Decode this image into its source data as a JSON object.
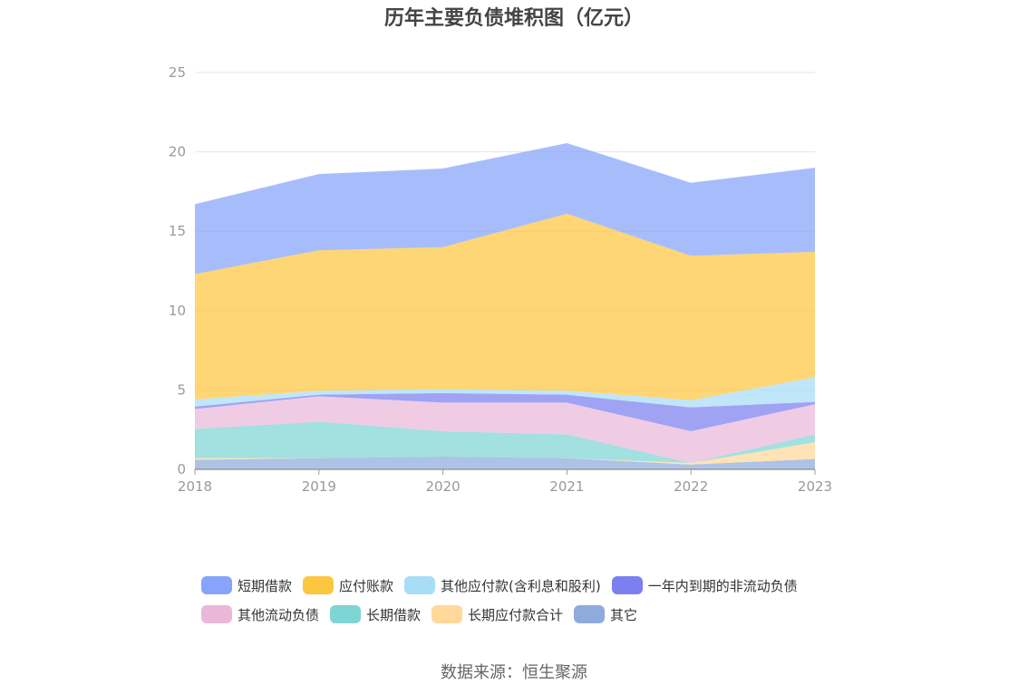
{
  "chart_data": {
    "type": "area",
    "stacked": true,
    "title": "历年主要负债堆积图（亿元）",
    "categories": [
      "2018",
      "2019",
      "2020",
      "2021",
      "2022",
      "2023"
    ],
    "ylim": [
      0,
      25
    ],
    "yticks": [
      0,
      5,
      10,
      15,
      20,
      25
    ],
    "grid": true,
    "legend_position": "bottom",
    "series": [
      {
        "name": "其它",
        "color": "#8FAADC",
        "values": [
          0.6,
          0.7,
          0.8,
          0.7,
          0.3,
          0.65
        ]
      },
      {
        "name": "长期应付款合计",
        "color": "#FFD89A",
        "values": [
          0.1,
          0.0,
          0.0,
          0.0,
          0.1,
          1.05
        ]
      },
      {
        "name": "长期借款",
        "color": "#7FD4D4",
        "values": [
          1.85,
          2.3,
          1.6,
          1.5,
          0.0,
          0.5
        ]
      },
      {
        "name": "其他流动负债",
        "color": "#E9B8D9",
        "values": [
          1.25,
          1.6,
          1.8,
          2.0,
          2.0,
          1.9
        ]
      },
      {
        "name": "一年内到期的非流动负债",
        "color": "#7B7FF0",
        "values": [
          0.15,
          0.1,
          0.6,
          0.5,
          1.5,
          0.15
        ]
      },
      {
        "name": "其他应付款(含利息和股利)",
        "color": "#A8DDF6",
        "values": [
          0.45,
          0.25,
          0.25,
          0.25,
          0.45,
          1.55
        ]
      },
      {
        "name": "应付账款",
        "color": "#FDC640",
        "values": [
          7.9,
          8.85,
          8.95,
          11.15,
          9.1,
          7.9
        ]
      },
      {
        "name": "短期借款",
        "color": "#85A4FA",
        "values": [
          4.4,
          4.8,
          4.95,
          4.45,
          4.6,
          5.3
        ]
      }
    ]
  },
  "legend_rows": [
    [
      {
        "label": "短期借款",
        "color": "#85A4FA"
      },
      {
        "label": "应付账款",
        "color": "#FDC640"
      },
      {
        "label": "其他应付款(含利息和股利)",
        "color": "#A8DDF6"
      },
      {
        "label": "一年内到期的非流动负债",
        "color": "#7B7FF0"
      }
    ],
    [
      {
        "label": "其他流动负债",
        "color": "#E9B8D9"
      },
      {
        "label": "长期借款",
        "color": "#7FD4D4"
      },
      {
        "label": "长期应付款合计",
        "color": "#FFD89A"
      },
      {
        "label": "其它",
        "color": "#8FAADC"
      }
    ]
  ],
  "source": "数据来源：恒生聚源"
}
